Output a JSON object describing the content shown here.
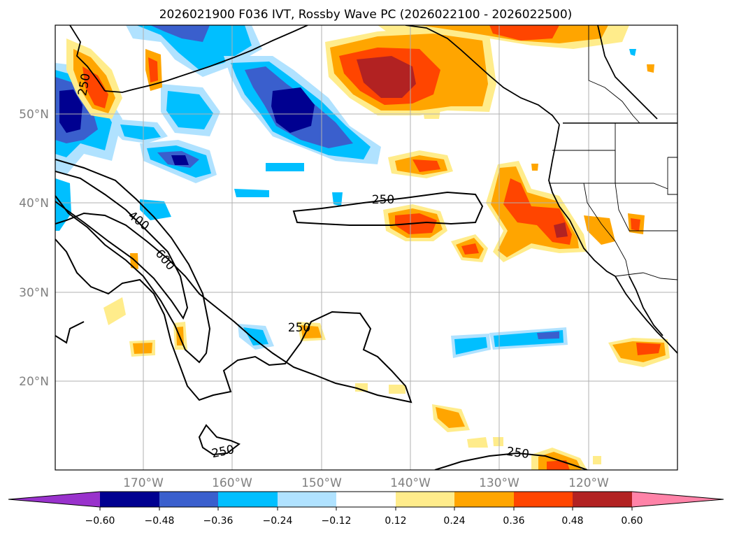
{
  "title": "2026021900 F036 IVT, Rossby Wave PC (2026022100 - 2026022500)",
  "lat_labels": [
    "50°N",
    "40°N",
    "30°N",
    "20°N"
  ],
  "lon_labels": [
    "170°W",
    "160°W",
    "150°W",
    "140°W",
    "130°W",
    "120°W"
  ],
  "contour_labels": [
    "250",
    "400",
    "600",
    "250",
    "250",
    "250",
    "250"
  ],
  "colorbar": {
    "ticks": [
      "−0.60",
      "−0.48",
      "−0.36",
      "−0.24",
      "−0.12",
      "0.12",
      "0.24",
      "0.36",
      "0.48",
      "0.60"
    ],
    "colors": {
      "under": "#9932cc",
      "neg_060_048": "#000090",
      "neg_048_036": "#3a5fcd",
      "neg_036_024": "#00bfff",
      "neg_024_012": "#b0e2ff",
      "neutral": "#ffffff",
      "pos_012_024": "#ffec8b",
      "pos_024_036": "#ffa500",
      "pos_036_048": "#ff4500",
      "pos_048_060": "#b22222",
      "over": "#ff83a8"
    }
  }
}
